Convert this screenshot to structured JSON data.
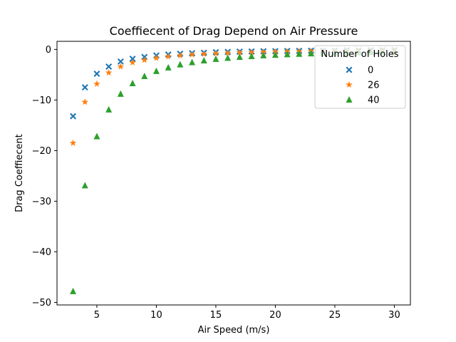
{
  "chart_data": {
    "type": "scatter",
    "title": "Coeffiecent of Drag Depend on Air Pressure",
    "xlabel": "Air Speed (m/s)",
    "ylabel": "Drag Coeffiecent",
    "xlim": [
      1.65,
      31.35
    ],
    "ylim": [
      -50.5,
      1.6
    ],
    "xticks": [
      5,
      10,
      15,
      20,
      25,
      30
    ],
    "yticks": [
      0,
      -10,
      -20,
      -30,
      -40,
      -50
    ],
    "xtick_labels": [
      "5",
      "10",
      "15",
      "20",
      "25",
      "30"
    ],
    "ytick_labels": [
      "0",
      "−10",
      "−20",
      "−30",
      "−40",
      "−50"
    ],
    "grid": false,
    "legend": {
      "title": "Number of Holes",
      "placement": "top-right"
    },
    "x": [
      3,
      4,
      5,
      6,
      7,
      8,
      9,
      10,
      11,
      12,
      13,
      14,
      15,
      16,
      17,
      18,
      19,
      20,
      21,
      22,
      23,
      24,
      25,
      26,
      27,
      28,
      29,
      30
    ],
    "series": [
      {
        "name": "0",
        "marker": "x-filled",
        "color": "#1f77b4",
        "values": [
          -13.2,
          -7.5,
          -4.8,
          -3.4,
          -2.4,
          -1.85,
          -1.5,
          -1.2,
          -1.0,
          -0.85,
          -0.75,
          -0.65,
          -0.55,
          -0.5,
          -0.45,
          -0.4,
          -0.36,
          -0.33,
          -0.3,
          -0.28,
          -0.25,
          -0.23,
          -0.22,
          -0.2,
          -0.19,
          -0.17,
          -0.16,
          -0.15
        ]
      },
      {
        "name": "26",
        "marker": "star",
        "color": "#ff7f0e",
        "values": [
          -18.5,
          -10.4,
          -6.8,
          -4.6,
          -3.4,
          -2.6,
          -2.1,
          -1.7,
          -1.4,
          -1.2,
          -1.0,
          -0.9,
          -0.8,
          -0.7,
          -0.6,
          -0.55,
          -0.5,
          -0.45,
          -0.42,
          -0.38,
          -0.35,
          -0.32,
          -0.3,
          -0.28,
          -0.26,
          -0.25,
          -0.23,
          -0.22
        ]
      },
      {
        "name": "40",
        "marker": "triangle",
        "color": "#2ca02c",
        "values": [
          -47.8,
          -26.9,
          -17.2,
          -11.9,
          -8.8,
          -6.7,
          -5.3,
          -4.3,
          -3.6,
          -3.0,
          -2.55,
          -2.2,
          -1.9,
          -1.7,
          -1.5,
          -1.35,
          -1.2,
          -1.1,
          -0.98,
          -0.9,
          -0.82,
          -0.75,
          -0.7,
          -0.64,
          -0.6,
          -0.55,
          -0.52,
          -0.48
        ]
      }
    ]
  }
}
